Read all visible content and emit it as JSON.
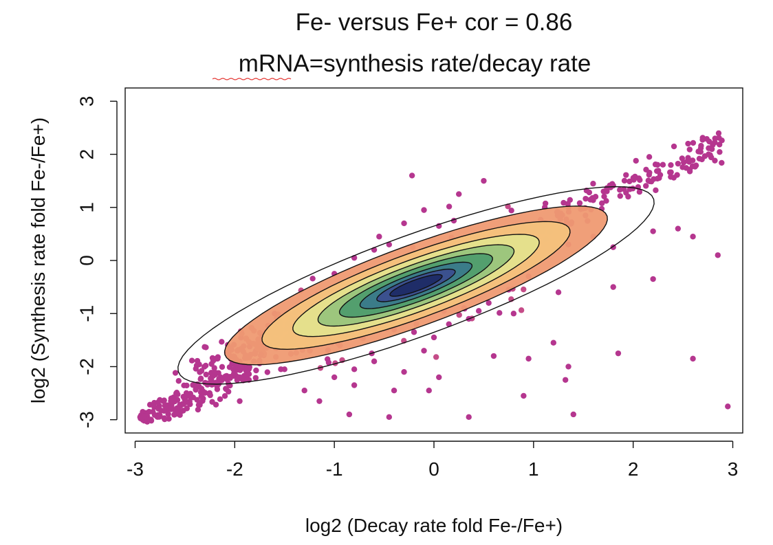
{
  "chart_data": {
    "type": "scatter",
    "title": "Fe- versus Fe+  cor =  0.86",
    "subtitle": "mRNA=synthesis rate/decay rate",
    "xlabel": "log2 (Decay rate fold Fe-/Fe+)",
    "ylabel": "log2 (Synthesis rate fold Fe-/Fe+)",
    "xlim": [
      -3.1,
      3.1
    ],
    "ylim": [
      -3.25,
      3.25
    ],
    "x_ticks": [
      -3,
      -2,
      -1,
      0,
      1,
      2,
      3
    ],
    "y_ticks": [
      -3,
      -2,
      -1,
      0,
      1,
      2,
      3
    ],
    "x_tick_labels": [
      "-3",
      "-2",
      "-1",
      "0",
      "1",
      "2",
      "3"
    ],
    "y_tick_labels": [
      "-3",
      "-2",
      "-1",
      "0",
      "1",
      "2",
      "3"
    ],
    "correlation": 0.86,
    "grid": false,
    "point_colors": [
      "#b5368f",
      "#c54c88",
      "#dc6c7d",
      "#ee8d77"
    ],
    "contour_colors": [
      "#1d2b66",
      "#3b4f8f",
      "#3a7a8a",
      "#4f9d6e",
      "#99c47c",
      "#e4e28d",
      "#f4c27c",
      "#ef9a72"
    ],
    "center_density_points": [
      [
        -2.3,
        -2.05
      ],
      [
        -2.1,
        -2.0
      ],
      [
        -1.9,
        -1.7
      ],
      [
        -1.7,
        -1.55
      ],
      [
        -1.5,
        -1.35
      ],
      [
        -1.3,
        -1.2
      ],
      [
        -1.1,
        -1.05
      ],
      [
        -0.9,
        -0.9
      ],
      [
        -0.7,
        -0.8
      ],
      [
        -0.5,
        -0.65
      ],
      [
        -0.35,
        -0.55
      ],
      [
        -0.2,
        -0.45
      ],
      [
        0.0,
        -0.3
      ],
      [
        0.15,
        -0.2
      ],
      [
        0.3,
        -0.05
      ],
      [
        0.5,
        0.15
      ]
    ],
    "outlier_points": [
      [
        -0.22,
        1.6
      ],
      [
        -0.1,
        0.95
      ],
      [
        0.05,
        0.65
      ],
      [
        0.25,
        1.25
      ],
      [
        0.5,
        1.5
      ],
      [
        0.45,
        0.4
      ],
      [
        -0.45,
        0.3
      ],
      [
        -0.6,
        0.2
      ],
      [
        -0.8,
        0.05
      ],
      [
        -1.0,
        -0.25
      ],
      [
        -0.95,
        -0.75
      ],
      [
        -1.6,
        -1.0
      ],
      [
        -1.2,
        -1.5
      ],
      [
        -1.0,
        -2.2
      ],
      [
        -0.8,
        -2.35
      ],
      [
        -0.6,
        -1.9
      ],
      [
        -0.4,
        -2.45
      ],
      [
        -0.3,
        -2.1
      ],
      [
        -0.1,
        -1.7
      ],
      [
        0.0,
        -1.45
      ],
      [
        0.15,
        -1.2
      ],
      [
        0.35,
        -1.1
      ],
      [
        0.55,
        -0.8
      ],
      [
        0.75,
        -0.55
      ],
      [
        0.95,
        -0.3
      ],
      [
        1.25,
        -0.6
      ],
      [
        1.2,
        -1.55
      ],
      [
        0.6,
        -1.8
      ],
      [
        0.95,
        -1.85
      ],
      [
        1.35,
        -2.0
      ],
      [
        1.32,
        -2.25
      ],
      [
        0.9,
        -2.55
      ],
      [
        1.4,
        -2.9
      ],
      [
        0.35,
        -2.95
      ],
      [
        -0.45,
        -2.95
      ],
      [
        -0.85,
        -2.9
      ],
      [
        -1.15,
        -2.65
      ],
      [
        -1.3,
        -2.45
      ],
      [
        -0.8,
        -2.05
      ],
      [
        -1.5,
        -2.05
      ],
      [
        -1.8,
        -1.75
      ],
      [
        0.05,
        -2.2
      ],
      [
        -0.05,
        -2.45
      ],
      [
        0.65,
        0.2
      ],
      [
        0.75,
        0.05
      ],
      [
        1.2,
        0.2
      ],
      [
        1.35,
        0.3
      ],
      [
        1.8,
        0.25
      ],
      [
        2.2,
        0.55
      ],
      [
        2.45,
        0.6
      ],
      [
        2.85,
        0.1
      ],
      [
        2.6,
        0.45
      ],
      [
        1.8,
        -0.5
      ],
      [
        2.2,
        -0.35
      ],
      [
        1.6,
        0.45
      ],
      [
        1.85,
        -1.75
      ],
      [
        2.6,
        -1.85
      ],
      [
        2.95,
        -2.75
      ],
      [
        0.2,
        0.75
      ],
      [
        -0.3,
        0.7
      ],
      [
        -0.55,
        0.45
      ],
      [
        0.1,
        -0.95
      ],
      [
        0.45,
        -0.95
      ],
      [
        0.8,
        -1.0
      ],
      [
        -0.4,
        -1.3
      ],
      [
        -0.2,
        -1.35
      ],
      [
        -1.95,
        -2.65
      ],
      [
        -2.35,
        -2.7
      ],
      [
        -2.95,
        -2.95
      ]
    ]
  }
}
